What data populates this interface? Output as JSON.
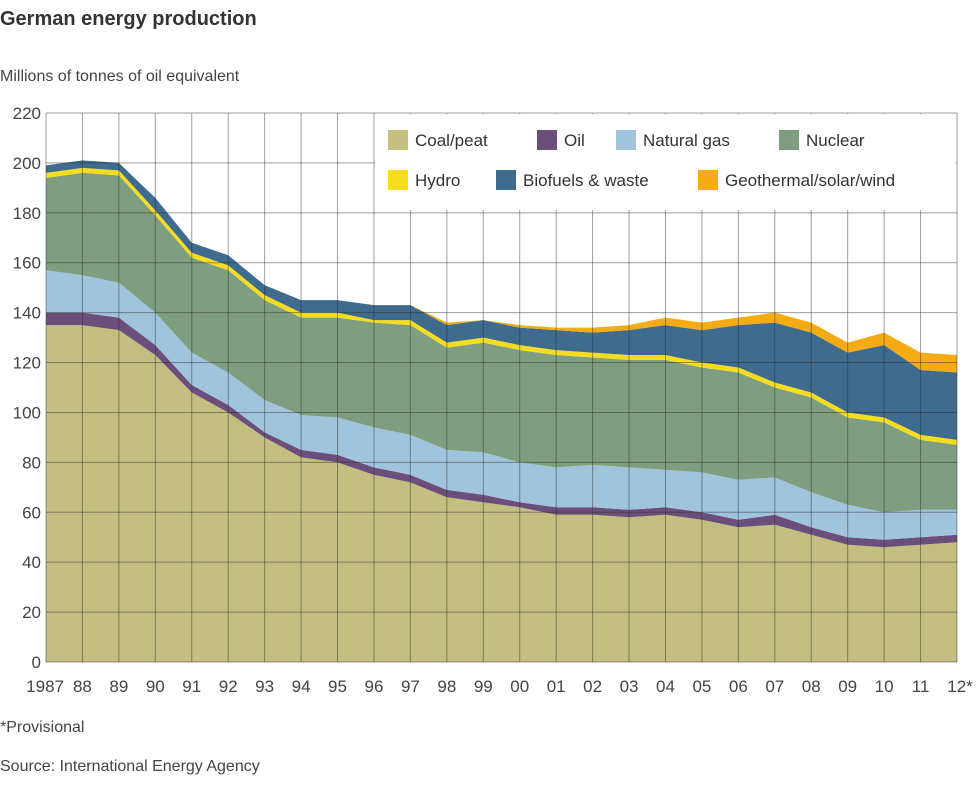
{
  "chart_data": {
    "type": "area",
    "stacked": true,
    "title": "German energy production",
    "subtitle": "Millions of tonnes of oil equivalent",
    "footnote": "*Provisional",
    "source": "Source: International Energy Agency",
    "categories": [
      "1987",
      "88",
      "89",
      "90",
      "91",
      "92",
      "93",
      "94",
      "95",
      "96",
      "97",
      "98",
      "99",
      "00",
      "01",
      "02",
      "03",
      "04",
      "05",
      "06",
      "07",
      "08",
      "09",
      "10",
      "11",
      "12*"
    ],
    "ylim": [
      0,
      220
    ],
    "yticks": [
      0,
      20,
      40,
      60,
      80,
      100,
      120,
      140,
      160,
      180,
      200,
      220
    ],
    "grid": true,
    "legend_position": "top-right",
    "series": [
      {
        "name": "Coal/peat",
        "color": "#c2bf80",
        "values": [
          135,
          135,
          133,
          123,
          108,
          100,
          90,
          82,
          80,
          75,
          72,
          66,
          64,
          62,
          59,
          59,
          58,
          59,
          57,
          54,
          55,
          51,
          47,
          46,
          47,
          48
        ]
      },
      {
        "name": "Oil",
        "color": "#6b4f7a",
        "values": [
          5,
          5,
          5,
          4,
          3,
          3,
          2,
          3,
          3,
          3,
          3,
          3,
          3,
          2,
          3,
          3,
          3,
          3,
          3,
          3,
          4,
          3,
          3,
          3,
          3,
          3
        ]
      },
      {
        "name": "Natural gas",
        "color": "#9fc4dc",
        "values": [
          17,
          15,
          14,
          13,
          13,
          13,
          13,
          14,
          15,
          16,
          16,
          16,
          17,
          16,
          16,
          17,
          17,
          15,
          16,
          16,
          15,
          14,
          13,
          11,
          11,
          10
        ]
      },
      {
        "name": "Nuclear",
        "color": "#7f9e80",
        "values": [
          37,
          41,
          43,
          39,
          38,
          41,
          40,
          39,
          40,
          42,
          44,
          41,
          44,
          45,
          45,
          43,
          43,
          44,
          42,
          43,
          36,
          38,
          35,
          36,
          28,
          26
        ]
      },
      {
        "name": "Hydro",
        "color": "#f5dd1e",
        "values": [
          2,
          2,
          2,
          2,
          2,
          2,
          2,
          2,
          2,
          1,
          2,
          2,
          2,
          2,
          2,
          2,
          2,
          2,
          2,
          2,
          2,
          2,
          2,
          2,
          2,
          2
        ]
      },
      {
        "name": "Biofuels & waste",
        "color": "#3f6b8f",
        "values": [
          3,
          3,
          3,
          5,
          4,
          4,
          4,
          5,
          5,
          6,
          6,
          7,
          7,
          7,
          8,
          8,
          10,
          12,
          13,
          17,
          24,
          24,
          24,
          29,
          26,
          27
        ]
      },
      {
        "name": "Geothermal/solar/wind",
        "color": "#f5ab14",
        "values": [
          0,
          0,
          0,
          0,
          0,
          0,
          0,
          0,
          0,
          0,
          0,
          1,
          0,
          1,
          1,
          2,
          2,
          3,
          3,
          3,
          4,
          4,
          4,
          5,
          7,
          7
        ]
      }
    ]
  }
}
